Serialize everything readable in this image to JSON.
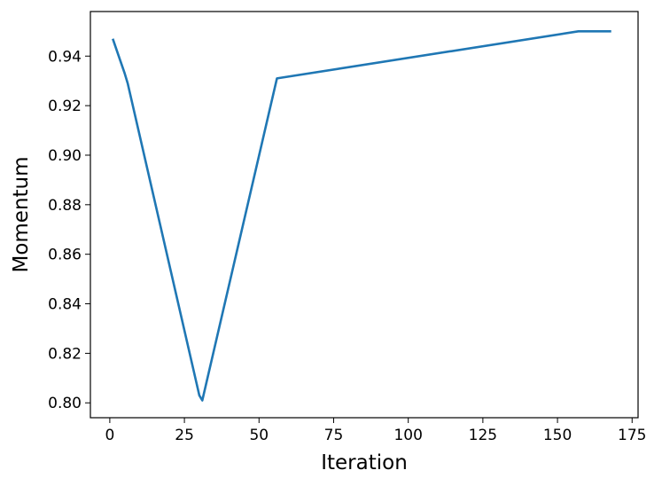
{
  "chart_data": {
    "type": "line",
    "xlabel": "Iteration",
    "ylabel": "Momentum",
    "xlim": [
      -6.5,
      177
    ],
    "ylim": [
      0.794,
      0.958
    ],
    "xticks": [
      0,
      25,
      50,
      75,
      100,
      125,
      150,
      175
    ],
    "yticks": [
      0.8,
      0.82,
      0.84,
      0.86,
      0.88,
      0.9,
      0.92,
      0.94
    ],
    "ytick_labels": [
      "0.80",
      "0.82",
      "0.84",
      "0.86",
      "0.88",
      "0.90",
      "0.92",
      "0.94"
    ],
    "grid": false,
    "series": [
      {
        "color": "#1f77b4",
        "x": [
          1,
          3,
          5,
          6,
          30,
          31,
          56,
          157,
          168
        ],
        "y": [
          0.947,
          0.94,
          0.933,
          0.929,
          0.803,
          0.801,
          0.931,
          0.95,
          0.95
        ]
      }
    ]
  }
}
